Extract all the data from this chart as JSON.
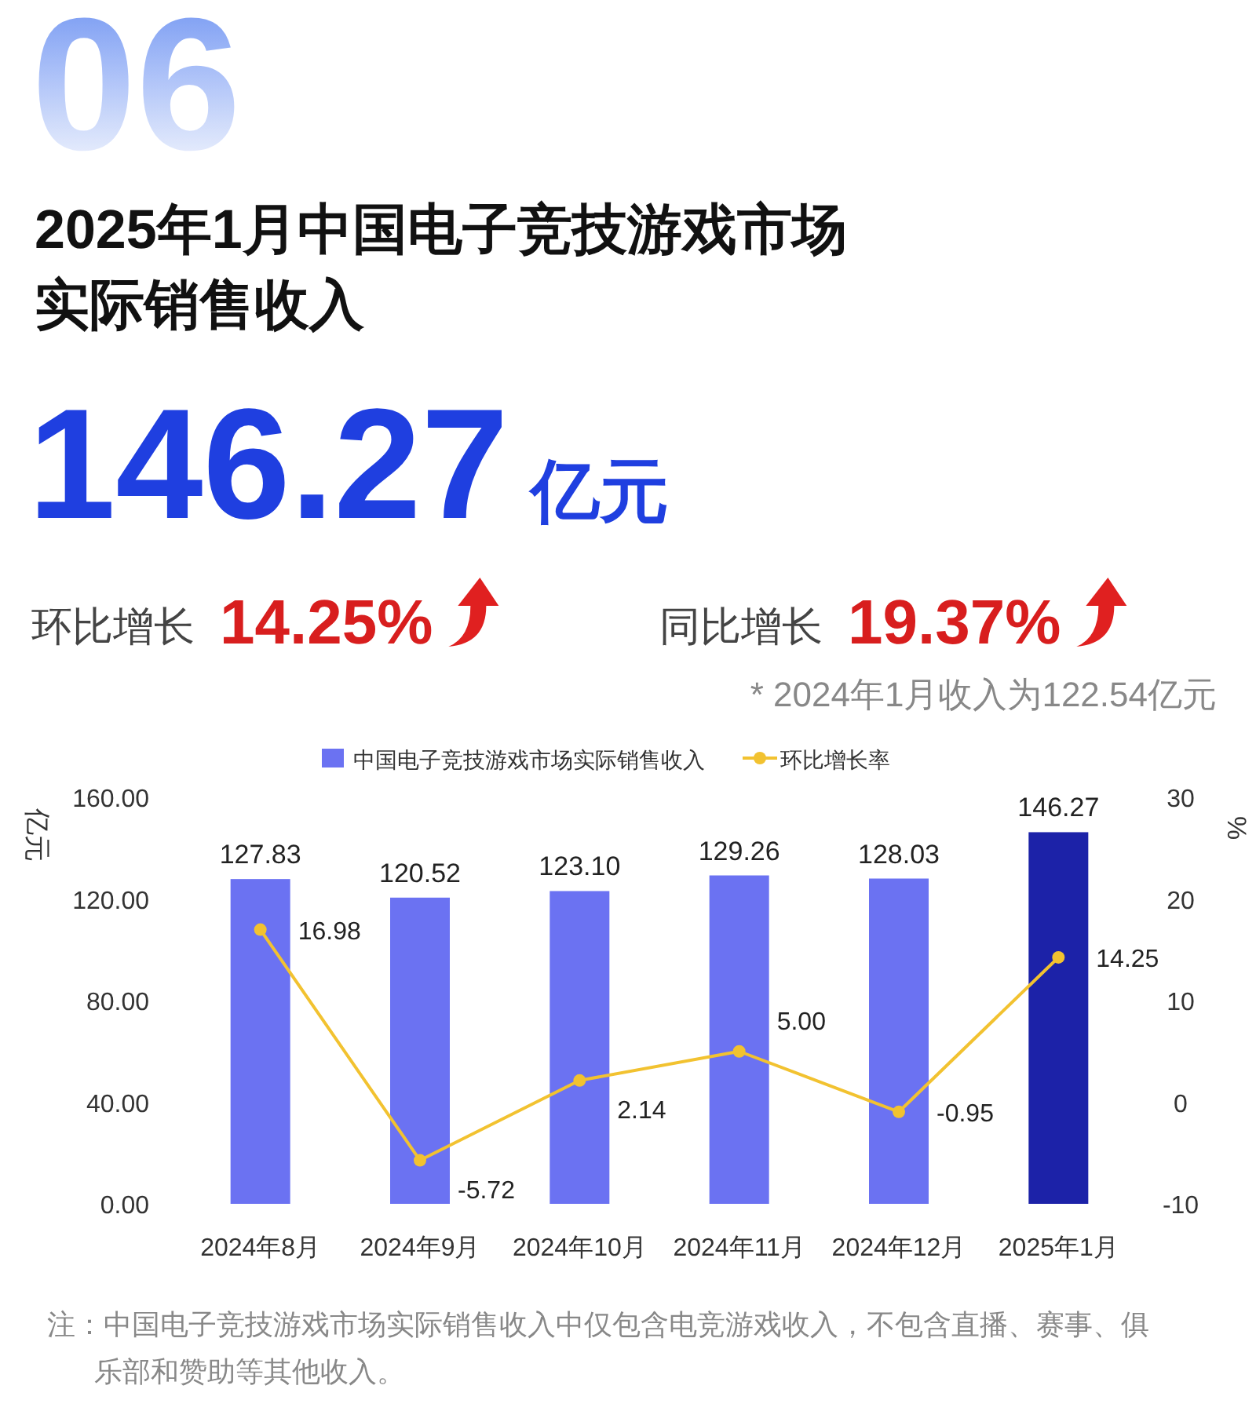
{
  "chart_data": {
    "type": "bar",
    "title": "2025年1月中国电子竞技游戏市场实际销售收入",
    "annotations": [
      "06",
      "146.27",
      "亿元",
      "环比增长",
      "14.25%",
      "同比增长",
      "19.37%",
      "* 2024年1月收入为122.54亿元",
      "注：中国电子竞技游戏市场实际销售收入中仅包含电竞游戏收入，不包含直播、赛事、俱乐部和赞助等其他收入。"
    ],
    "categories": [
      "2024年8月",
      "2024年9月",
      "2024年10月",
      "2024年11月",
      "2024年12月",
      "2025年1月"
    ],
    "series": [
      {
        "name": "中国电子竞技游戏市场实际销售收入",
        "color": "#6b72f2",
        "colors": [
          "#6b72f2",
          "#6b72f2",
          "#6b72f2",
          "#6b72f2",
          "#6b72f2",
          "#1c22a8"
        ],
        "values": [
          127.83,
          120.52,
          123.1,
          129.26,
          128.03,
          146.27
        ],
        "value_labels": [
          "127.83",
          "120.52",
          "123.10",
          "129.26",
          "128.03",
          "146.27"
        ]
      },
      {
        "name": "环比增长率",
        "type": "line",
        "axis": "y2",
        "color": "#f2c230",
        "marker": "circle",
        "values": [
          16.98,
          -5.72,
          2.14,
          5.0,
          -0.95,
          14.25
        ],
        "value_labels": [
          "16.98",
          "-5.72",
          "2.14",
          "5.00",
          "-0.95",
          "14.25"
        ]
      }
    ],
    "ylabel": "亿元",
    "y2label": "%",
    "ylim": [
      0,
      160
    ],
    "yticks": [
      {
        "value": 0,
        "label": "0.00"
      },
      {
        "value": 40,
        "label": "40.00"
      },
      {
        "value": 80,
        "label": "80.00"
      },
      {
        "value": 120,
        "label": "120.00"
      },
      {
        "value": 160,
        "label": "160.00"
      }
    ],
    "y2lim": [
      -10,
      30
    ],
    "y2ticks": [
      -10,
      0,
      10,
      20,
      30
    ],
    "legend": "top",
    "grid": false
  }
}
